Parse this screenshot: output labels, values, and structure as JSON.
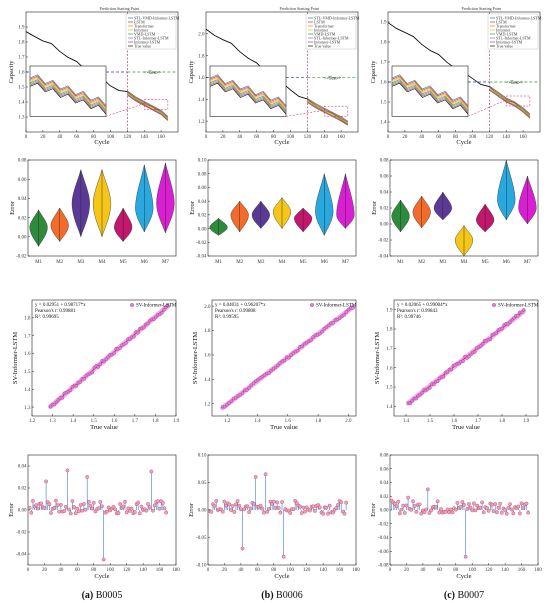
{
  "figure": {
    "captions": [
      {
        "tag": "(a)",
        "name": "B0005"
      },
      {
        "tag": "(b)",
        "name": "B0006"
      },
      {
        "tag": "(c)",
        "name": "B0007"
      }
    ]
  },
  "chart_data": [
    {
      "type": "line",
      "panel": "a-capacity",
      "annotation": "Prediction Starting Point",
      "xlabel": "Cycle",
      "ylabel": "Capacity",
      "xlim": [
        0,
        180
      ],
      "ylim": [
        1.2,
        2.0
      ],
      "xticks": [
        "0",
        "20",
        "40",
        "60",
        "80",
        "100",
        "120",
        "140",
        "160"
      ],
      "yticks": [
        "1.3",
        "1.4",
        "1.5",
        "1.6",
        "1.7",
        "1.8",
        "1.9"
      ],
      "train_label": "Train",
      "test_label": "Test",
      "prediction_start": 120,
      "threshold": 1.6,
      "legend": [
        "STL-VMD-Informer-LSTM",
        "LSTM",
        "Transformer",
        "Informer",
        "VMD-LSTM",
        "STL-Informer-LSTM",
        "Informer-LSTM",
        "True value"
      ],
      "true_value": {
        "x": [
          0,
          10,
          20,
          30,
          40,
          50,
          60,
          70,
          80,
          90,
          100,
          110,
          120,
          130,
          140,
          150,
          160,
          168
        ],
        "y": [
          1.86,
          1.84,
          1.81,
          1.78,
          1.74,
          1.7,
          1.66,
          1.62,
          1.58,
          1.55,
          1.51,
          1.48,
          1.46,
          1.42,
          1.39,
          1.36,
          1.33,
          1.29
        ]
      }
    },
    {
      "type": "line",
      "panel": "b-capacity",
      "annotation": "Prediction Starting Point",
      "xlabel": "Cycle",
      "ylabel": "Capacity",
      "xlim": [
        0,
        180
      ],
      "ylim": [
        1.1,
        2.2
      ],
      "xticks": [
        "0",
        "20",
        "40",
        "60",
        "80",
        "100",
        "120",
        "140",
        "160"
      ],
      "yticks": [
        "1.2",
        "1.4",
        "1.6",
        "1.8",
        "2.0"
      ],
      "train_label": "Train",
      "test_label": "Test",
      "prediction_start": 120,
      "threshold": 1.6,
      "legend": [
        "STL-VMD-Informer-LSTM",
        "LSTM",
        "Transformer",
        "Informer",
        "VMD-LSTM",
        "STL-Informer-LSTM",
        "Informer-LSTM",
        "True value"
      ],
      "true_value": {
        "x": [
          0,
          10,
          20,
          30,
          40,
          50,
          60,
          70,
          80,
          90,
          100,
          110,
          120,
          130,
          140,
          150,
          160,
          168
        ],
        "y": [
          2.03,
          1.99,
          1.95,
          1.9,
          1.84,
          1.78,
          1.72,
          1.66,
          1.6,
          1.54,
          1.49,
          1.43,
          1.39,
          1.34,
          1.3,
          1.26,
          1.22,
          1.18
        ]
      }
    },
    {
      "type": "line",
      "panel": "c-capacity",
      "annotation": "Prediction Starting Point",
      "xlabel": "Cycle",
      "ylabel": "Capacity",
      "xlim": [
        0,
        180
      ],
      "ylim": [
        1.35,
        1.95
      ],
      "xticks": [
        "0",
        "20",
        "40",
        "60",
        "80",
        "100",
        "120",
        "140",
        "160"
      ],
      "yticks": [
        "1.4",
        "1.5",
        "1.6",
        "1.7",
        "1.8",
        "1.9"
      ],
      "train_label": "Train",
      "test_label": "Test",
      "prediction_start": 120,
      "threshold": 1.6,
      "legend": [
        "STL-VMD-Informer-LSTM",
        "LSTM",
        "Transformer",
        "Informer",
        "VMD-LSTM",
        "STL-Informer-LSTM",
        "Informer-LSTM",
        "True value"
      ],
      "true_value": {
        "x": [
          0,
          10,
          20,
          30,
          40,
          50,
          60,
          70,
          80,
          90,
          100,
          110,
          120,
          130,
          140,
          150,
          160,
          168
        ],
        "y": [
          1.89,
          1.87,
          1.85,
          1.82,
          1.79,
          1.76,
          1.73,
          1.7,
          1.67,
          1.64,
          1.62,
          1.59,
          1.57,
          1.54,
          1.51,
          1.49,
          1.46,
          1.43
        ]
      }
    },
    {
      "type": "violin",
      "panel": "a-error",
      "ylabel": "Error",
      "ylim": [
        -0.02,
        0.08
      ],
      "yticks": [
        "-0.02",
        "0.00",
        "0.02",
        "0.04",
        "0.06",
        "0.08"
      ],
      "categories": [
        "M1",
        "M2",
        "M3",
        "M4",
        "M5",
        "M6",
        "M7"
      ],
      "colors": [
        "#2e8b3c",
        "#f26b2a",
        "#5b3a96",
        "#f5c518",
        "#c2186b",
        "#29a8e0",
        "#d81fd2"
      ],
      "ranges": [
        [
          -0.01,
          0.028
        ],
        [
          -0.005,
          0.03
        ],
        [
          0,
          0.07
        ],
        [
          0,
          0.07
        ],
        [
          -0.005,
          0.03
        ],
        [
          0.005,
          0.075
        ],
        [
          0.004,
          0.077
        ]
      ],
      "medians": [
        0.01,
        0.012,
        0.035,
        0.035,
        0.01,
        0.03,
        0.035
      ]
    },
    {
      "type": "violin",
      "panel": "b-error",
      "ylabel": "Error",
      "ylim": [
        -0.04,
        0.1
      ],
      "yticks": [
        "-0.04",
        "-0.02",
        "0.00",
        "0.02",
        "0.04",
        "0.06",
        "0.08",
        "0.10"
      ],
      "categories": [
        "M1",
        "M2",
        "M3",
        "M4",
        "M5",
        "M6",
        "M7"
      ],
      "colors": [
        "#2e8b3c",
        "#f26b2a",
        "#5b3a96",
        "#f5c518",
        "#c2186b",
        "#29a8e0",
        "#d81fd2"
      ],
      "ranges": [
        [
          -0.01,
          0.015
        ],
        [
          -0.005,
          0.04
        ],
        [
          0,
          0.04
        ],
        [
          0,
          0.045
        ],
        [
          -0.005,
          0.03
        ],
        [
          -0.01,
          0.08
        ],
        [
          0,
          0.08
        ]
      ],
      "medians": [
        0.002,
        0.02,
        0.02,
        0.025,
        0.015,
        0.025,
        0.02
      ]
    },
    {
      "type": "violin",
      "panel": "c-error",
      "ylabel": "Error",
      "ylim": [
        -0.04,
        0.08
      ],
      "yticks": [
        "-0.04",
        "-0.02",
        "0.00",
        "0.02",
        "0.04",
        "0.06",
        "0.08"
      ],
      "categories": [
        "M1",
        "M2",
        "M3",
        "M4",
        "M5",
        "M6",
        "M7"
      ],
      "colors": [
        "#2e8b3c",
        "#f26b2a",
        "#5b3a96",
        "#f5c518",
        "#c2186b",
        "#29a8e0",
        "#d81fd2"
      ],
      "ranges": [
        [
          -0.01,
          0.03
        ],
        [
          -0.005,
          0.035
        ],
        [
          0.005,
          0.04
        ],
        [
          -0.04,
          -0.002
        ],
        [
          -0.01,
          0.025
        ],
        [
          0.005,
          0.08
        ],
        [
          0,
          0.06
        ]
      ],
      "medians": [
        0.01,
        0.015,
        0.02,
        -0.02,
        0.005,
        0.03,
        0.02
      ]
    },
    {
      "type": "scatter",
      "panel": "a-fit",
      "xlabel": "True value",
      "ylabel": "SV-Informer-LSTM",
      "legend": "SV-Informer-LSTM",
      "equation": "y = 0.02951 + 0.98717*x",
      "pearson": "Pearson's r: 0.99881",
      "r2": "R²: 0.99695",
      "xlim": [
        1.2,
        1.9
      ],
      "ylim": [
        1.25,
        1.9
      ],
      "xticks": [
        "1.2",
        "1.3",
        "1.4",
        "1.5",
        "1.6",
        "1.7",
        "1.8",
        "1.9"
      ],
      "yticks": [
        "1.3",
        "1.4",
        "1.5",
        "1.6",
        "1.7",
        "1.8"
      ],
      "intercept": 0.02951,
      "slope": 0.98717,
      "range": [
        1.29,
        1.86
      ]
    },
    {
      "type": "scatter",
      "panel": "b-fit",
      "xlabel": "True value",
      "ylabel": "SV-Informer-LSTM",
      "legend": "SV-Informer-LSTM",
      "equation": "y = 0.04031 + 0.96207*x",
      "pearson": "Pearson's r: 0.99808",
      "r2": "R²: 0.99595",
      "xlim": [
        1.1,
        2.05
      ],
      "ylim": [
        1.1,
        2.05
      ],
      "xticks": [
        "1.2",
        "1.4",
        "1.6",
        "1.8",
        "2.0"
      ],
      "yticks": [
        "1.2",
        "1.4",
        "1.6",
        "1.8",
        "2.0"
      ],
      "intercept": 0.04031,
      "slope": 0.96207,
      "range": [
        1.17,
        2.03
      ]
    },
    {
      "type": "scatter",
      "panel": "c-fit",
      "xlabel": "True value",
      "ylabel": "SV-Informer-LSTM",
      "legend": "SV-Informer-LSTM",
      "equation": "y = 0.02065 + 0.99004*x",
      "pearson": "Pearson's r: 0.99843",
      "r2": "R²: 0.99746",
      "xlim": [
        1.35,
        1.95
      ],
      "ylim": [
        1.35,
        1.95
      ],
      "xticks": [
        "1.4",
        "1.5",
        "1.6",
        "1.7",
        "1.8",
        "1.9"
      ],
      "yticks": [
        "1.4",
        "1.5",
        "1.6",
        "1.7",
        "1.8",
        "1.9"
      ],
      "intercept": 0.02065,
      "slope": 0.99004,
      "range": [
        1.41,
        1.89
      ]
    },
    {
      "type": "scatter",
      "panel": "a-resid",
      "xlabel": "Cycle",
      "ylabel": "Error",
      "xlim": [
        0,
        180
      ],
      "ylim": [
        -0.05,
        0.05
      ],
      "xticks": [
        "0",
        "20",
        "40",
        "60",
        "80",
        "100",
        "120",
        "140",
        "160",
        "180"
      ],
      "yticks": [
        "-0.04",
        "-0.02",
        "0.00",
        "0.02",
        "0.04"
      ],
      "spikes": [
        [
          22,
          0.026
        ],
        [
          48,
          0.036
        ],
        [
          72,
          0.03
        ],
        [
          92,
          -0.045
        ],
        [
          150,
          0.035
        ]
      ]
    },
    {
      "type": "scatter",
      "panel": "b-resid",
      "xlabel": "Cycle",
      "ylabel": "Error",
      "xlim": [
        0,
        180
      ],
      "ylim": [
        -0.1,
        0.1
      ],
      "xticks": [
        "0",
        "20",
        "40",
        "60",
        "80",
        "100",
        "120",
        "140",
        "160",
        "180"
      ],
      "yticks": [
        "-0.10",
        "-0.05",
        "0.00",
        "0.05",
        "0.10"
      ],
      "spikes": [
        [
          25,
          -0.06
        ],
        [
          35,
          0.04
        ],
        [
          42,
          -0.07
        ],
        [
          58,
          0.06
        ],
        [
          70,
          0.065
        ],
        [
          92,
          -0.085
        ],
        [
          95,
          0.07
        ]
      ]
    },
    {
      "type": "scatter",
      "panel": "c-resid",
      "xlabel": "Cycle",
      "ylabel": "Error",
      "xlim": [
        0,
        180
      ],
      "ylim": [
        -0.08,
        0.08
      ],
      "xticks": [
        "0",
        "20",
        "40",
        "60",
        "80",
        "100",
        "120",
        "140",
        "160",
        "180"
      ],
      "yticks": [
        "-0.08",
        "-0.06",
        "-0.04",
        "-0.02",
        "0.00",
        "0.02",
        "0.04",
        "0.06",
        "0.08"
      ],
      "spikes": [
        [
          22,
          0.018
        ],
        [
          46,
          0.03
        ],
        [
          92,
          -0.068
        ],
        [
          125,
          0.025
        ]
      ]
    }
  ]
}
